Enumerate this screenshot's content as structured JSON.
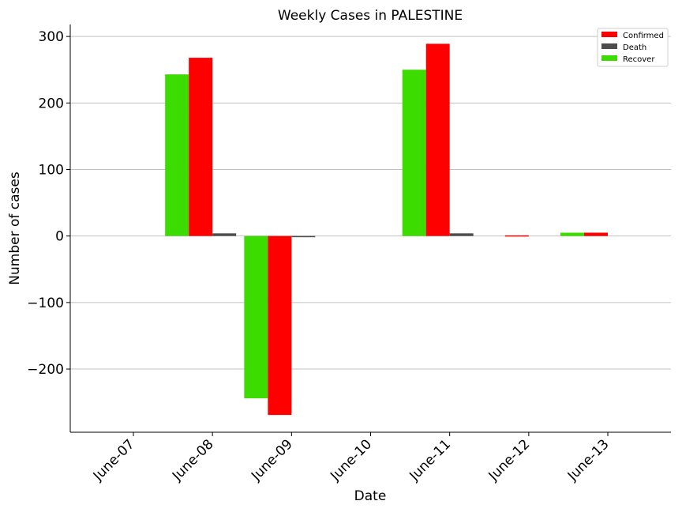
{
  "chart_data": {
    "type": "bar",
    "title": "Weekly Cases in PALESTINE",
    "xlabel": "Date",
    "ylabel": "Number of cases",
    "categories": [
      "June-07",
      "June-08",
      "June-09",
      "June-10",
      "June-11",
      "June-12",
      "June-13"
    ],
    "series": [
      {
        "name": "Recover",
        "color": "#3ddc00",
        "values": [
          0,
          243,
          -244,
          0,
          250,
          0,
          5
        ]
      },
      {
        "name": "Confirmed",
        "color": "#ff0000",
        "values": [
          0,
          268,
          -269,
          0,
          289,
          1,
          5
        ]
      },
      {
        "name": "Death",
        "color": "#4d4d4d",
        "values": [
          0,
          4,
          -1,
          0,
          4,
          0,
          0
        ]
      }
    ],
    "legend_order": [
      "Confirmed",
      "Death",
      "Recover"
    ],
    "ylim": [
      -295,
      318
    ],
    "yticks": [
      -200,
      -100,
      0,
      100,
      200,
      300
    ],
    "ytick_labels": [
      "−200",
      "−100",
      "0",
      "100",
      "200",
      "300"
    ],
    "grid": "horizontal",
    "legend_position": "top-right"
  }
}
